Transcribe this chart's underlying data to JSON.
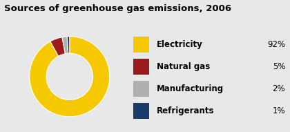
{
  "title": "Sources of greenhouse gas emissions, 2006",
  "title_fontsize": 9.5,
  "background_color": "#e8e8e8",
  "title_bar_color": "#6aaa2a",
  "border_color": "#7a9aaf",
  "slices": [
    92,
    5,
    2,
    1
  ],
  "labels": [
    "Electricity",
    "Natural gas",
    "Manufacturing",
    "Refrigerants"
  ],
  "percentages": [
    "92%",
    "5%",
    "2%",
    "1%"
  ],
  "colors": [
    "#f5c800",
    "#9b1a1a",
    "#b0b0b0",
    "#1a3a6a"
  ],
  "donut_hole": 0.55,
  "startangle": 90,
  "legend_fontsize": 8.5,
  "pct_fontsize": 8.5
}
